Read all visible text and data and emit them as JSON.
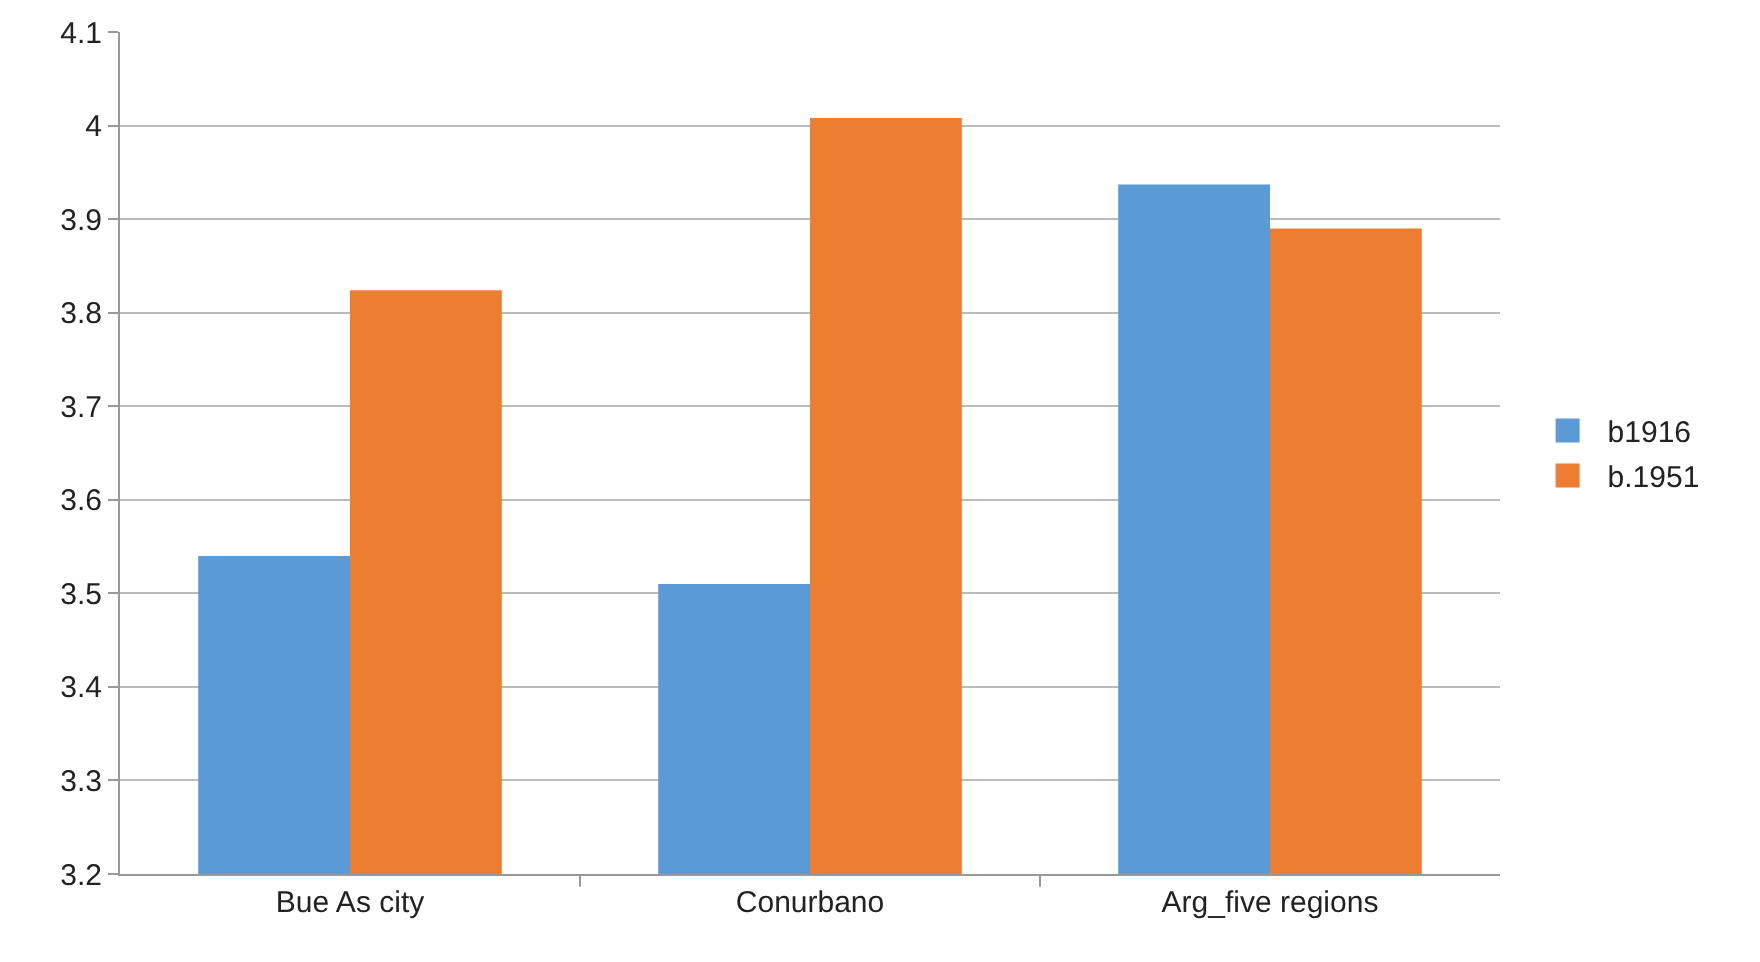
{
  "chart_data": {
    "type": "bar",
    "categories": [
      "Bue As city",
      "Conurbano",
      "Arg_five regions"
    ],
    "series": [
      {
        "name": "b1916",
        "color": "#5b9bd5",
        "values": [
          3.54,
          3.51,
          3.937
        ]
      },
      {
        "name": "b.1951",
        "color": "#ed7d31",
        "values": [
          3.824,
          4.008,
          3.89
        ]
      }
    ],
    "ylim": [
      3.2,
      4.1
    ],
    "yticks": [
      3.2,
      3.3,
      3.4,
      3.5,
      3.6,
      3.7,
      3.8,
      3.9,
      4,
      4.1
    ],
    "grid": "y",
    "legend": "right"
  }
}
